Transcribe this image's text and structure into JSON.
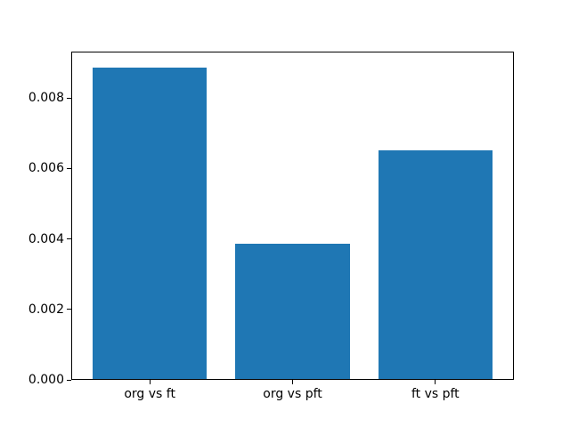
{
  "chart_data": {
    "type": "bar",
    "title": "",
    "xlabel": "",
    "ylabel": "",
    "categories": [
      "org vs ft",
      "org vs pft",
      "ft vs pft"
    ],
    "values": [
      0.00887,
      0.00386,
      0.00651
    ],
    "bar_color": "#1f77b4",
    "bar_width": 0.8,
    "xlim": [
      -0.55,
      2.55
    ],
    "ylim": [
      0,
      0.009313
    ],
    "yticks": [
      0,
      0.002,
      0.004,
      0.006,
      0.008
    ],
    "ytick_labels": [
      "0.000",
      "0.002",
      "0.004",
      "0.006",
      "0.008"
    ],
    "grid": false,
    "legend": "none",
    "spine_color": "#000000",
    "text_color": "#000000",
    "background": "#ffffff"
  }
}
